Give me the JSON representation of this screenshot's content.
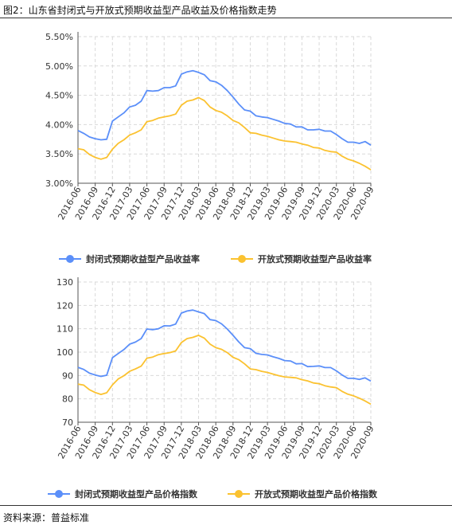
{
  "title": "图2：山东省封闭式与开放式预期收益型产品收益及价格指数走势",
  "source": "资料来源：普益标准",
  "colors": {
    "closed": "#5b8ff9",
    "open": "#fbc230"
  },
  "chart_data": [
    {
      "type": "line",
      "categories": [
        "2016-06",
        "2016-07",
        "2016-08",
        "2016-09",
        "2016-10",
        "2016-11",
        "2016-12",
        "2017-01",
        "2017-02",
        "2017-03",
        "2017-04",
        "2017-05",
        "2017-06",
        "2017-07",
        "2017-08",
        "2017-09",
        "2017-10",
        "2017-11",
        "2017-12",
        "2018-01",
        "2018-02",
        "2018-03",
        "2018-04",
        "2018-05",
        "2018-06",
        "2018-07",
        "2018-08",
        "2018-09",
        "2018-10",
        "2018-11",
        "2018-12",
        "2019-01",
        "2019-02",
        "2019-03",
        "2019-04",
        "2019-05",
        "2019-06",
        "2019-07",
        "2019-08",
        "2019-09",
        "2019-10",
        "2019-11",
        "2019-12",
        "2020-01",
        "2020-02",
        "2020-03",
        "2020-04",
        "2020-05",
        "2020-06",
        "2020-07",
        "2020-08",
        "2020-09"
      ],
      "tick_labels": [
        "2016-06",
        "2016-09",
        "2016-12",
        "2017-03",
        "2017-06",
        "2017-09",
        "2017-12",
        "2018-03",
        "2018-06",
        "2018-09",
        "2018-12",
        "2019-03",
        "2019-06",
        "2019-09",
        "2019-12",
        "2020-03",
        "2020-06",
        "2020-09"
      ],
      "y_ticks": [
        "3.00%",
        "3.50%",
        "4.00%",
        "4.50%",
        "5.00%",
        "5.50%"
      ],
      "ylim": [
        3.0,
        5.5
      ],
      "grid": true,
      "legend_position": "bottom",
      "series": [
        {
          "name": "封闭式预期收益型产品收益率",
          "values": [
            3.9,
            3.85,
            3.79,
            3.76,
            3.74,
            3.75,
            4.06,
            4.13,
            4.2,
            4.3,
            4.33,
            4.4,
            4.58,
            4.57,
            4.58,
            4.63,
            4.63,
            4.66,
            4.86,
            4.9,
            4.92,
            4.89,
            4.85,
            4.75,
            4.73,
            4.67,
            4.58,
            4.47,
            4.35,
            4.25,
            4.23,
            4.15,
            4.13,
            4.12,
            4.09,
            4.06,
            4.02,
            4.01,
            3.96,
            3.96,
            3.91,
            3.91,
            3.92,
            3.89,
            3.89,
            3.83,
            3.76,
            3.7,
            3.7,
            3.68,
            3.71,
            3.65
          ]
        },
        {
          "name": "开放式预期收益型产品收益率",
          "values": [
            3.59,
            3.57,
            3.49,
            3.44,
            3.41,
            3.44,
            3.58,
            3.68,
            3.74,
            3.82,
            3.86,
            3.91,
            4.05,
            4.07,
            4.11,
            4.13,
            4.15,
            4.18,
            4.33,
            4.4,
            4.42,
            4.46,
            4.41,
            4.3,
            4.24,
            4.21,
            4.15,
            4.07,
            4.03,
            3.95,
            3.86,
            3.85,
            3.82,
            3.8,
            3.77,
            3.74,
            3.72,
            3.71,
            3.7,
            3.67,
            3.65,
            3.61,
            3.6,
            3.56,
            3.54,
            3.53,
            3.46,
            3.41,
            3.38,
            3.34,
            3.29,
            3.23
          ]
        }
      ]
    },
    {
      "type": "line",
      "categories": [
        "2016-06",
        "2016-07",
        "2016-08",
        "2016-09",
        "2016-10",
        "2016-11",
        "2016-12",
        "2017-01",
        "2017-02",
        "2017-03",
        "2017-04",
        "2017-05",
        "2017-06",
        "2017-07",
        "2017-08",
        "2017-09",
        "2017-10",
        "2017-11",
        "2017-12",
        "2018-01",
        "2018-02",
        "2018-03",
        "2018-04",
        "2018-05",
        "2018-06",
        "2018-07",
        "2018-08",
        "2018-09",
        "2018-10",
        "2018-11",
        "2018-12",
        "2019-01",
        "2019-02",
        "2019-03",
        "2019-04",
        "2019-05",
        "2019-06",
        "2019-07",
        "2019-08",
        "2019-09",
        "2019-10",
        "2019-11",
        "2019-12",
        "2020-01",
        "2020-02",
        "2020-03",
        "2020-04",
        "2020-05",
        "2020-06",
        "2020-07",
        "2020-08",
        "2020-09"
      ],
      "tick_labels": [
        "2016-06",
        "2016-09",
        "2016-12",
        "2017-03",
        "2017-06",
        "2017-09",
        "2017-12",
        "2018-03",
        "2018-06",
        "2018-09",
        "2018-12",
        "2019-03",
        "2019-06",
        "2019-09",
        "2019-12",
        "2020-03",
        "2020-06",
        "2020-09"
      ],
      "y_ticks": [
        "70",
        "80",
        "90",
        "100",
        "110",
        "120",
        "130"
      ],
      "ylim": [
        70,
        130
      ],
      "grid": true,
      "legend_position": "bottom",
      "series": [
        {
          "name": "封闭式预期收益型产品价格指数",
          "values": [
            93.5,
            92.6,
            91.0,
            90.2,
            89.6,
            90.1,
            97.6,
            99.4,
            101.1,
            103.4,
            104.3,
            105.8,
            109.9,
            109.6,
            110.0,
            111.3,
            111.2,
            112.0,
            116.7,
            117.6,
            118.0,
            117.2,
            116.5,
            113.9,
            113.5,
            112.1,
            109.9,
            107.2,
            104.4,
            101.9,
            101.5,
            99.5,
            99.0,
            98.8,
            98.0,
            97.3,
            96.4,
            96.2,
            95.0,
            95.1,
            93.8,
            93.9,
            94.1,
            93.4,
            93.4,
            92.0,
            90.2,
            88.8,
            88.8,
            88.3,
            89.0,
            87.6
          ]
        },
        {
          "name": "开放式预期收益型产品价格指数",
          "values": [
            86.3,
            85.9,
            83.9,
            82.7,
            81.9,
            82.6,
            86.0,
            88.5,
            89.9,
            91.8,
            92.8,
            94.0,
            97.4,
            97.9,
            98.9,
            99.4,
            99.8,
            100.5,
            104.1,
            105.8,
            106.3,
            107.2,
            106.0,
            103.4,
            101.9,
            101.2,
            99.8,
            97.8,
            96.8,
            95.0,
            92.8,
            92.5,
            91.8,
            91.3,
            90.6,
            89.9,
            89.4,
            89.2,
            89.0,
            88.2,
            87.7,
            86.8,
            86.5,
            85.6,
            85.1,
            84.8,
            83.2,
            82.0,
            81.3,
            80.3,
            79.1,
            77.7
          ]
        }
      ]
    }
  ]
}
